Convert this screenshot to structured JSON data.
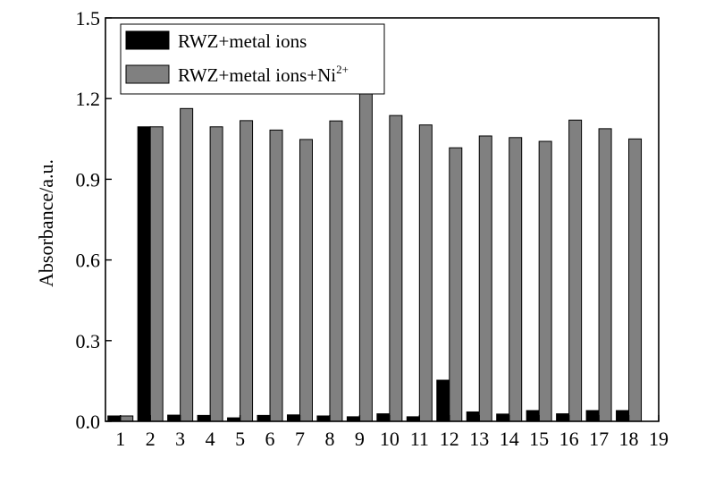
{
  "chart_data": {
    "type": "bar",
    "title": "",
    "xlabel": "",
    "ylabel": "Absorbance/a.u.",
    "ylim": [
      0.0,
      1.5
    ],
    "yticks": [
      "0.0",
      "0.3",
      "0.6",
      "0.9",
      "1.2",
      "1.5"
    ],
    "xlim": [
      0.5,
      19
    ],
    "xticks": [
      "1",
      "2",
      "3",
      "4",
      "5",
      "6",
      "7",
      "8",
      "9",
      "10",
      "11",
      "12",
      "13",
      "14",
      "15",
      "16",
      "17",
      "18",
      "19"
    ],
    "categories": [
      "1",
      "2",
      "3",
      "4",
      "5",
      "6",
      "7",
      "8",
      "9",
      "10",
      "11",
      "12",
      "13",
      "14",
      "15",
      "16",
      "17",
      "18"
    ],
    "series": [
      {
        "name": "RWZ+metal ions",
        "color": "#000000",
        "values": [
          0.02,
          1.095,
          0.023,
          0.022,
          0.013,
          0.022,
          0.024,
          0.02,
          0.017,
          0.028,
          0.017,
          0.153,
          0.035,
          0.027,
          0.04,
          0.028,
          0.04,
          0.04
        ]
      },
      {
        "name": "RWZ+metal ions+Ni",
        "name_superscript": "2+",
        "color": "#808080",
        "values": [
          0.02,
          1.095,
          1.163,
          1.095,
          1.118,
          1.083,
          1.048,
          1.117,
          1.225,
          1.137,
          1.102,
          1.017,
          1.061,
          1.055,
          1.041,
          1.12,
          1.088,
          1.05
        ]
      }
    ],
    "legend_position": "top-left",
    "grid": false
  }
}
